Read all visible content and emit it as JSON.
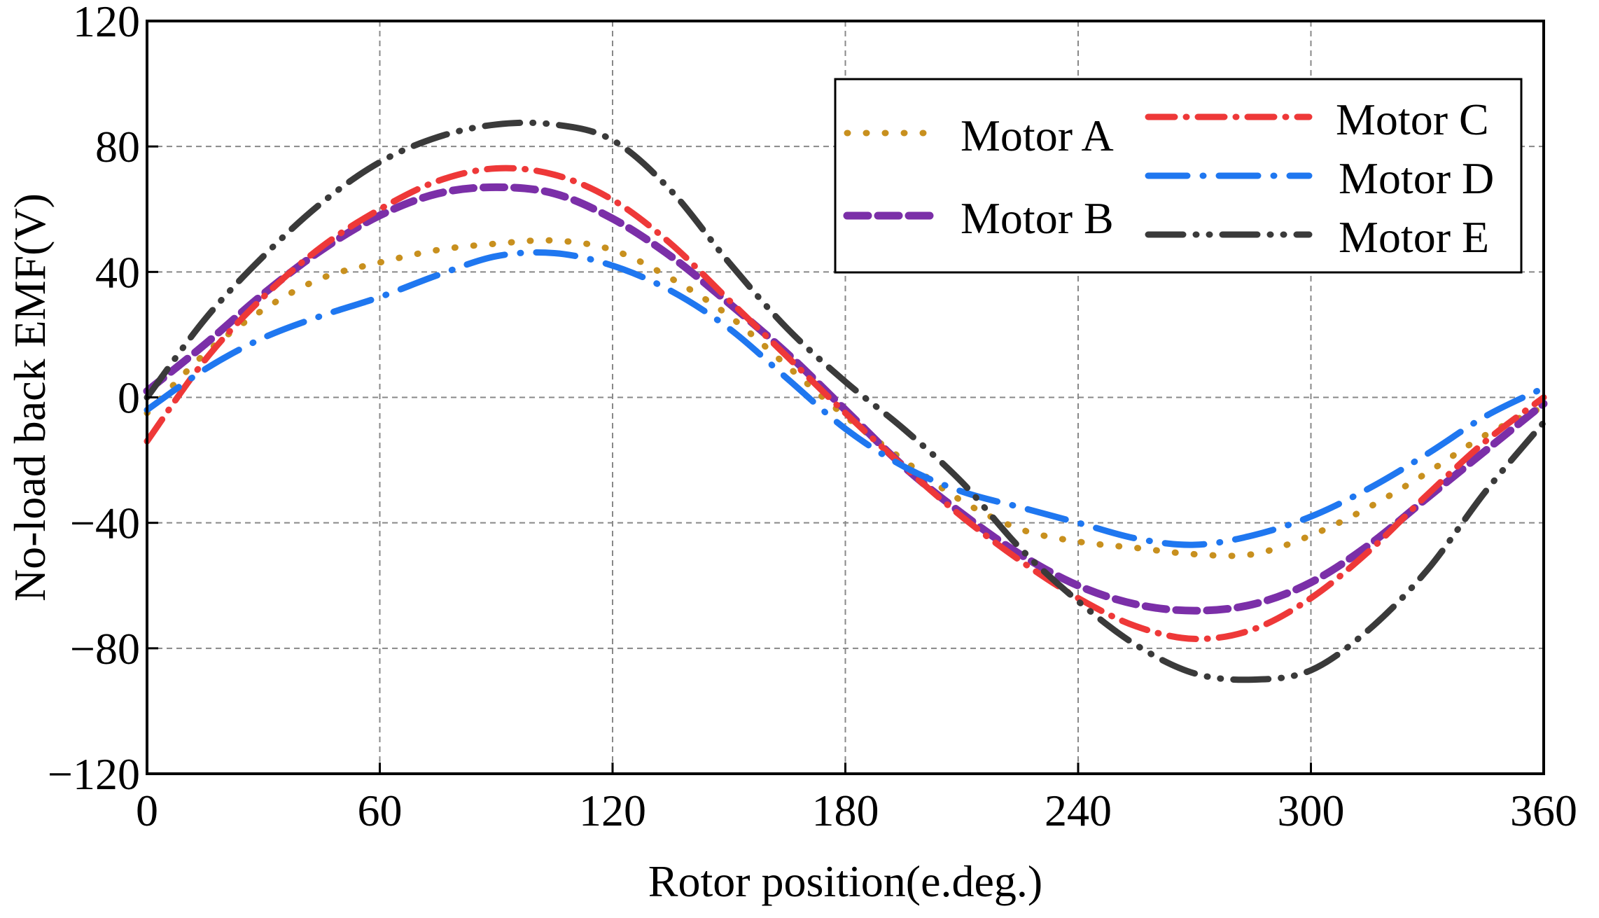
{
  "chart_data": {
    "type": "line",
    "title": "",
    "xlabel": "Rotor position(e.deg.)",
    "ylabel": "No-load back EMF(V)",
    "xlim": [
      0,
      360
    ],
    "ylim": [
      -120,
      120
    ],
    "x_ticks": [
      0,
      60,
      120,
      180,
      240,
      300,
      360
    ],
    "y_ticks": [
      -120,
      -80,
      -40,
      0,
      40,
      80,
      120
    ],
    "x_tick_labels": [
      "0",
      "60",
      "120",
      "180",
      "240",
      "300",
      "360"
    ],
    "y_tick_labels": [
      "−120",
      "−80",
      "−40",
      "0",
      "40",
      "80",
      "120"
    ],
    "grid": true,
    "legend_position": "top-right",
    "series": [
      {
        "name": "Motor A",
        "color": "#c8901e",
        "style": "dotted",
        "x": [
          0,
          15,
          30,
          45,
          60,
          75,
          90,
          105,
          120,
          135,
          150,
          165,
          180,
          195,
          210,
          225,
          240,
          255,
          270,
          285,
          300,
          315,
          330,
          345,
          360
        ],
        "y": [
          -5,
          14,
          28,
          38,
          43,
          47,
          49,
          50,
          47,
          38,
          26,
          10,
          -6,
          -20,
          -33,
          -42,
          -46,
          -48,
          -50,
          -50,
          -44,
          -35,
          -24,
          -12,
          -3
        ]
      },
      {
        "name": "Motor B",
        "color": "#7b2fa8",
        "style": "dashed",
        "x": [
          0,
          15,
          30,
          45,
          60,
          75,
          90,
          105,
          120,
          135,
          150,
          165,
          180,
          195,
          210,
          225,
          240,
          255,
          270,
          285,
          300,
          315,
          330,
          345,
          360
        ],
        "y": [
          2,
          17,
          33,
          47,
          58,
          65,
          67,
          65,
          57,
          45,
          30,
          14,
          -4,
          -22,
          -37,
          -50,
          -60,
          -66,
          -68,
          -66,
          -59,
          -47,
          -32,
          -17,
          -2
        ]
      },
      {
        "name": "Motor C",
        "color": "#ee3838",
        "style": "dashdot",
        "x": [
          0,
          15,
          30,
          45,
          60,
          75,
          90,
          105,
          120,
          135,
          150,
          165,
          180,
          195,
          210,
          225,
          240,
          255,
          270,
          285,
          300,
          315,
          330,
          345,
          360
        ],
        "y": [
          -14,
          12,
          32,
          48,
          60,
          69,
          73,
          71,
          63,
          49,
          31,
          13,
          -5,
          -22,
          -38,
          -52,
          -64,
          -73,
          -77,
          -74,
          -64,
          -49,
          -31,
          -14,
          0
        ]
      },
      {
        "name": "Motor D",
        "color": "#1f77f0",
        "style": "longdashdot",
        "x": [
          0,
          15,
          30,
          45,
          60,
          75,
          90,
          105,
          120,
          135,
          150,
          165,
          180,
          195,
          210,
          225,
          240,
          255,
          270,
          285,
          300,
          315,
          330,
          345,
          360
        ],
        "y": [
          -4,
          9,
          19,
          26,
          32,
          39,
          45,
          46,
          42,
          34,
          22,
          6,
          -10,
          -22,
          -30,
          -35,
          -40,
          -45,
          -47,
          -44,
          -38,
          -29,
          -18,
          -6,
          3
        ]
      },
      {
        "name": "Motor E",
        "color": "#3a3a3a",
        "style": "dashdotdot",
        "x": [
          0,
          15,
          30,
          45,
          60,
          75,
          90,
          105,
          120,
          135,
          150,
          165,
          180,
          195,
          210,
          225,
          240,
          255,
          270,
          285,
          300,
          315,
          330,
          345,
          360
        ],
        "y": [
          0,
          25,
          45,
          62,
          75,
          83,
          87,
          87,
          82,
          66,
          43,
          22,
          5,
          -10,
          -27,
          -48,
          -65,
          -79,
          -88,
          -90,
          -87,
          -74,
          -55,
          -30,
          -8
        ]
      }
    ]
  }
}
